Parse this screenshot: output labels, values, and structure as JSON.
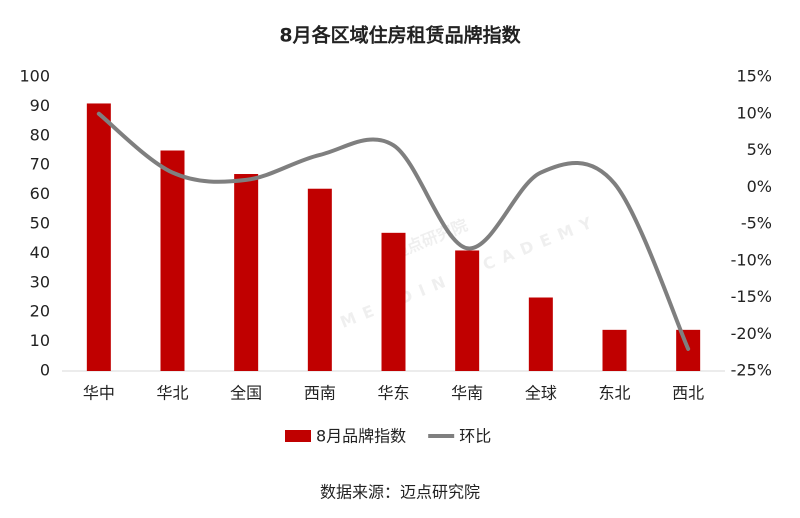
{
  "chart_data": {
    "type": "bar_line",
    "title": "8月各区域住房租赁品牌指数",
    "source": "数据来源：迈点研究院",
    "watermark": "迈点研究院",
    "watermark_en": "MEADIN ACADEMY",
    "categories": [
      "华中",
      "华北",
      "全国",
      "西南",
      "华东",
      "华南",
      "全球",
      "东北",
      "西北"
    ],
    "series": [
      {
        "name": "8月品牌指数",
        "type": "bar",
        "color": "#c00000",
        "values": [
          91,
          75,
          67,
          62,
          47,
          41,
          25,
          14,
          14
        ]
      },
      {
        "name": "环比",
        "type": "line",
        "axis": "y2",
        "color": "#7f7f7f",
        "values": [
          10,
          2,
          1,
          4.4,
          5.7,
          -8.3,
          2,
          0.5,
          -22
        ]
      }
    ],
    "ylim": [
      0,
      100
    ],
    "yticks": [
      0,
      10,
      20,
      30,
      40,
      50,
      60,
      70,
      80,
      90,
      100
    ],
    "y2lim": [
      -25,
      15
    ],
    "y2ticks": [
      {
        "value": -25,
        "label": "-25%"
      },
      {
        "value": -20,
        "label": "-20%"
      },
      {
        "value": -15,
        "label": "-15%"
      },
      {
        "value": -10,
        "label": "-10%"
      },
      {
        "value": -5,
        "label": "-5%"
      },
      {
        "value": 0,
        "label": "0%"
      },
      {
        "value": 5,
        "label": "5%"
      },
      {
        "value": 10,
        "label": "10%"
      },
      {
        "value": 15,
        "label": "15%"
      }
    ],
    "legend": "bottom",
    "grid": false
  }
}
